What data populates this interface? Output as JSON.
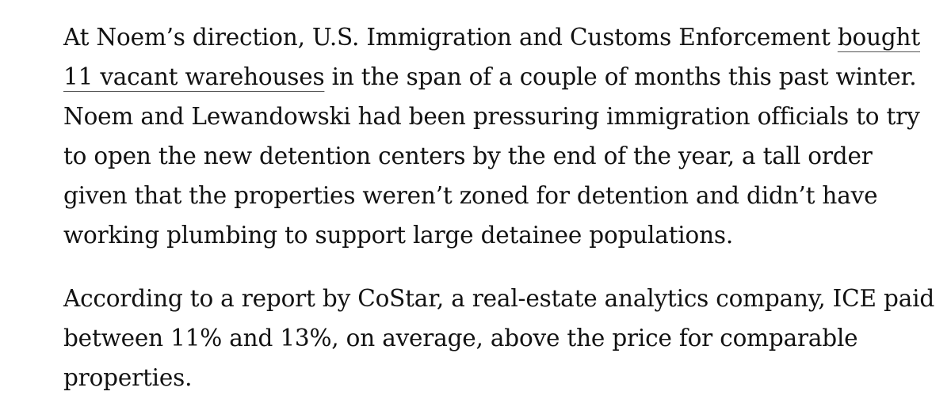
{
  "article": {
    "paragraph_1": {
      "before_link": "At Noem’s direction, U.S. Immigration and Customs Enforcement ",
      "link_text": "bought 11 vacant warehouses",
      "after_link": " in the span of a couple of months this past winter. Noem and Lewandowski had been pressuring immigration officials to try to open the new detention centers by the end of the year, a tall order given that the properties weren’t zoned for detention and didn’t have working plumbing to support large detainee populations."
    },
    "paragraph_2": {
      "text": "According to a report by CoStar, a real-estate analytics company, ICE paid between 11% and 13%, on average, above the price for comparable properties."
    }
  }
}
